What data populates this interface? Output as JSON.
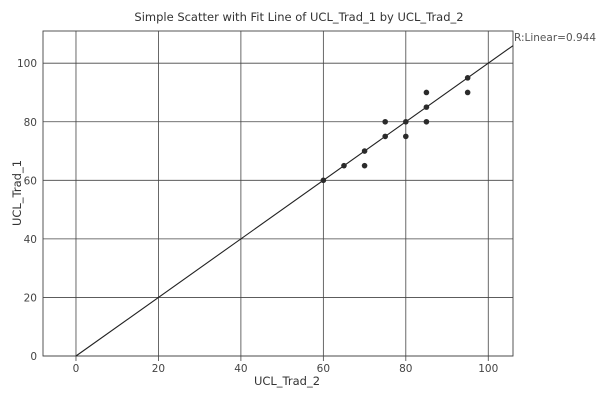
{
  "chart_data": {
    "type": "scatter",
    "title": "Simple Scatter with Fit Line of UCL_Trad_1 by UCL_Trad_2",
    "xlabel": "UCL_Trad_2",
    "ylabel": "UCL_Trad_1",
    "xlim": [
      -8,
      106
    ],
    "ylim": [
      0,
      111
    ],
    "xticks": [
      0,
      20,
      40,
      60,
      80,
      100
    ],
    "yticks": [
      0,
      20,
      40,
      60,
      80,
      100
    ],
    "grid": true,
    "points": [
      {
        "x": 60,
        "y": 60
      },
      {
        "x": 65,
        "y": 65
      },
      {
        "x": 70,
        "y": 65
      },
      {
        "x": 70,
        "y": 70
      },
      {
        "x": 75,
        "y": 75
      },
      {
        "x": 75,
        "y": 80
      },
      {
        "x": 80,
        "y": 75
      },
      {
        "x": 80,
        "y": 80
      },
      {
        "x": 85,
        "y": 80
      },
      {
        "x": 85,
        "y": 85
      },
      {
        "x": 85,
        "y": 90
      },
      {
        "x": 95,
        "y": 90
      },
      {
        "x": 95,
        "y": 95
      }
    ],
    "fit_line": {
      "type": "linear",
      "slope": 1.0,
      "intercept": 0.0,
      "x_range": [
        0,
        106
      ]
    },
    "r_label": "R:Linear=0.944"
  }
}
